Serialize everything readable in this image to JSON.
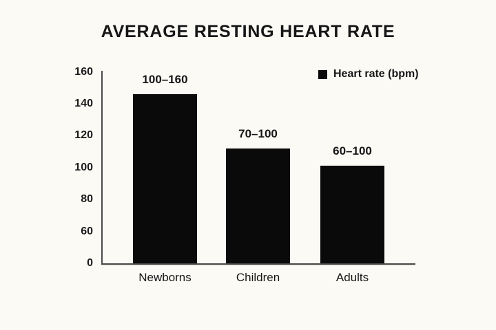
{
  "page": {
    "background_color": "#FBFAF5",
    "text_color": "#1B1B1B"
  },
  "title": "AVERAGE RESTING HEART RATE",
  "legend": {
    "label": "Heart rate (bpm)",
    "swatch_color": "#0A0A0A"
  },
  "chart_data": {
    "type": "bar",
    "title": "AVERAGE RESTING HEART RATE",
    "categories": [
      "Newborns",
      "Children",
      "Adults"
    ],
    "bar_value_labels": [
      "100–160",
      "70–100",
      "60–100"
    ],
    "ranges_bpm": [
      [
        100,
        160
      ],
      [
        70,
        100
      ],
      [
        60,
        100
      ]
    ],
    "series": [
      {
        "name": "Heart rate (bpm)",
        "plotted_values": [
          146,
          112,
          101
        ]
      }
    ],
    "yticks": [
      0,
      60,
      80,
      100,
      120,
      140,
      160
    ],
    "ytick_spacing": "even (non-linear value axis)",
    "ylim": [
      0,
      160
    ],
    "xlabel": "",
    "ylabel": "",
    "grid": false,
    "legend_position": "top-right",
    "bar_color": "#0A0A0A",
    "axis_color": "#4A4A4A"
  }
}
